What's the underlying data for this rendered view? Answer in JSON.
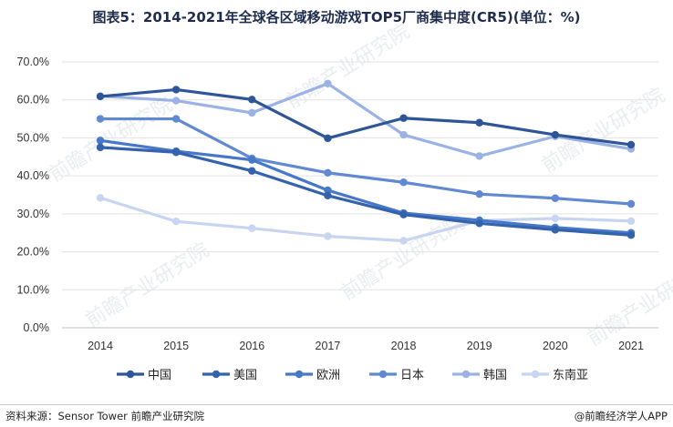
{
  "title": "图表5：2014-2021年全球各区域移动游戏TOP5厂商集中度(CR5)(单位：%)",
  "source": "资料来源：Sensor Tower 前瞻产业研究院",
  "brand": "@前瞻经济学人APP",
  "watermark": "前瞻产业研究院",
  "chart_data": {
    "type": "line",
    "x": [
      "2014",
      "2015",
      "2016",
      "2017",
      "2018",
      "2019",
      "2020",
      "2021"
    ],
    "y_ticks": [
      "0.0%",
      "10.0%",
      "20.0%",
      "30.0%",
      "40.0%",
      "50.0%",
      "60.0%",
      "70.0%"
    ],
    "ylim": [
      0,
      70
    ],
    "grid": true,
    "legend": "bottom",
    "series": [
      {
        "name": "中国",
        "color": "#2e5597",
        "values": [
          60.9,
          62.7,
          60.1,
          49.9,
          55.2,
          54.0,
          50.8,
          48.2
        ]
      },
      {
        "name": "美国",
        "color": "#3462ac",
        "values": [
          47.5,
          46.2,
          41.3,
          34.8,
          29.8,
          27.5,
          25.8,
          24.4
        ]
      },
      {
        "name": "欧洲",
        "color": "#4677c8",
        "values": [
          49.3,
          46.5,
          44.2,
          36.2,
          30.2,
          28.3,
          26.4,
          25.0
        ]
      },
      {
        "name": "日本",
        "color": "#6089d2",
        "values": [
          55.0,
          55.0,
          44.6,
          40.8,
          38.3,
          35.2,
          34.1,
          32.6
        ]
      },
      {
        "name": "韩国",
        "color": "#9bb2e4",
        "values": [
          61.0,
          59.8,
          56.6,
          64.3,
          50.8,
          45.2,
          50.4,
          47.1
        ]
      },
      {
        "name": "东南亚",
        "color": "#c8d5f0",
        "values": [
          34.2,
          28.0,
          26.2,
          24.1,
          22.9,
          28.2,
          28.8,
          28.1
        ]
      }
    ]
  }
}
